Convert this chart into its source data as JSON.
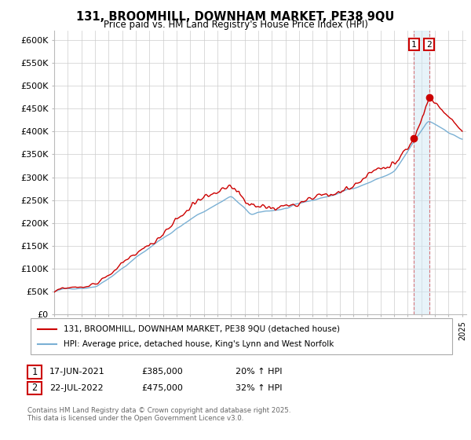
{
  "title": "131, BROOMHILL, DOWNHAM MARKET, PE38 9QU",
  "subtitle": "Price paid vs. HM Land Registry's House Price Index (HPI)",
  "ylim": [
    0,
    620000
  ],
  "yticks": [
    0,
    50000,
    100000,
    150000,
    200000,
    250000,
    300000,
    350000,
    400000,
    450000,
    500000,
    550000,
    600000
  ],
  "ytick_labels": [
    "£0",
    "£50K",
    "£100K",
    "£150K",
    "£200K",
    "£250K",
    "£300K",
    "£350K",
    "£400K",
    "£450K",
    "£500K",
    "£550K",
    "£600K"
  ],
  "hpi_color": "#7ab0d4",
  "price_color": "#cc0000",
  "vline_color": "#cc0000",
  "vline_alpha": 0.5,
  "shade_color": "#d0e8f5",
  "shade_alpha": 0.5,
  "marker1_year": 2021.46,
  "marker2_year": 2022.56,
  "marker1_price": 385000,
  "marker2_price": 475000,
  "legend_line1": "131, BROOMHILL, DOWNHAM MARKET, PE38 9QU (detached house)",
  "legend_line2": "HPI: Average price, detached house, King's Lynn and West Norfolk",
  "annot1_num": "1",
  "annot1_date": "17-JUN-2021",
  "annot1_price": "£385,000",
  "annot1_hpi": "20% ↑ HPI",
  "annot2_num": "2",
  "annot2_date": "22-JUL-2022",
  "annot2_price": "£475,000",
  "annot2_hpi": "32% ↑ HPI",
  "footer": "Contains HM Land Registry data © Crown copyright and database right 2025.\nThis data is licensed under the Open Government Licence v3.0.",
  "background_color": "#ffffff",
  "grid_color": "#cccccc"
}
